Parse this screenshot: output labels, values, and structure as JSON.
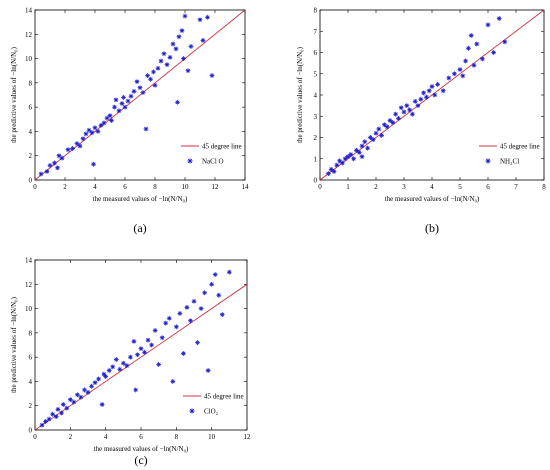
{
  "chart_data": [
    {
      "type": "scatter",
      "panel_label": "(a)",
      "xlabel": "the measured values of −ln(N/N₀)",
      "ylabel": "the predictive values of −ln(N/N₀)",
      "xlim": [
        0,
        14
      ],
      "ylim": [
        0,
        14
      ],
      "xticks": [
        "0",
        "2",
        "4",
        "6",
        "8",
        "10",
        "12",
        "14"
      ],
      "yticks": [
        "0",
        "2",
        "4",
        "6",
        "8",
        "10",
        "12",
        "14"
      ],
      "legend_position": "bottom-right",
      "reference_line": {
        "name": "45 degree line",
        "color": "#cc3344",
        "from": [
          0,
          0
        ],
        "to": [
          14,
          14
        ]
      },
      "series": [
        {
          "name": "NaCl O",
          "marker": "star",
          "color": "#1a1acc",
          "points": [
            [
              0.4,
              0.5
            ],
            [
              0.8,
              0.7
            ],
            [
              1.0,
              1.2
            ],
            [
              1.3,
              1.4
            ],
            [
              1.5,
              1.0
            ],
            [
              1.6,
              2.0
            ],
            [
              1.8,
              1.8
            ],
            [
              2.2,
              2.5
            ],
            [
              2.5,
              2.6
            ],
            [
              2.8,
              3.0
            ],
            [
              3.0,
              2.8
            ],
            [
              3.2,
              3.4
            ],
            [
              3.4,
              3.8
            ],
            [
              3.6,
              4.1
            ],
            [
              3.8,
              3.9
            ],
            [
              3.9,
              1.3
            ],
            [
              4.0,
              4.3
            ],
            [
              4.2,
              4.0
            ],
            [
              4.4,
              4.5
            ],
            [
              4.6,
              4.7
            ],
            [
              4.8,
              5.1
            ],
            [
              5.0,
              5.3
            ],
            [
              5.1,
              4.9
            ],
            [
              5.3,
              6.0
            ],
            [
              5.4,
              6.6
            ],
            [
              5.6,
              5.7
            ],
            [
              5.8,
              6.3
            ],
            [
              5.9,
              6.8
            ],
            [
              6.0,
              6.0
            ],
            [
              6.2,
              6.5
            ],
            [
              6.4,
              6.9
            ],
            [
              6.6,
              7.3
            ],
            [
              6.8,
              8.1
            ],
            [
              7.0,
              7.6
            ],
            [
              7.2,
              7.2
            ],
            [
              7.4,
              4.2
            ],
            [
              7.5,
              8.6
            ],
            [
              7.7,
              8.3
            ],
            [
              7.9,
              8.9
            ],
            [
              8.0,
              7.8
            ],
            [
              8.2,
              9.2
            ],
            [
              8.4,
              9.8
            ],
            [
              8.6,
              10.4
            ],
            [
              8.8,
              9.5
            ],
            [
              9.0,
              10.1
            ],
            [
              9.2,
              11.2
            ],
            [
              9.4,
              10.8
            ],
            [
              9.5,
              6.4
            ],
            [
              9.6,
              11.8
            ],
            [
              9.8,
              12.3
            ],
            [
              9.9,
              10.0
            ],
            [
              10.0,
              13.5
            ],
            [
              10.2,
              9.0
            ],
            [
              10.4,
              11.0
            ],
            [
              11.0,
              13.2
            ],
            [
              11.2,
              11.5
            ],
            [
              11.5,
              13.4
            ],
            [
              11.8,
              8.6
            ]
          ]
        }
      ]
    },
    {
      "type": "scatter",
      "panel_label": "(b)",
      "xlabel": "the measured values of −ln(N/N₀)",
      "ylabel": "the predictive values of −ln(N/N₀)",
      "xlim": [
        0,
        8
      ],
      "ylim": [
        0,
        8
      ],
      "xticks": [
        "0",
        "1",
        "2",
        "3",
        "4",
        "5",
        "6",
        "7",
        "8"
      ],
      "yticks": [
        "0",
        "1",
        "2",
        "3",
        "4",
        "5",
        "6",
        "7",
        "8"
      ],
      "legend_position": "bottom-right",
      "reference_line": {
        "name": "45 degree line",
        "color": "#cc3344",
        "from": [
          0,
          0
        ],
        "to": [
          8,
          8
        ]
      },
      "series": [
        {
          "name": "NH₂Cl",
          "marker": "star",
          "color": "#1a1acc",
          "points": [
            [
              0.3,
              0.3
            ],
            [
              0.4,
              0.5
            ],
            [
              0.5,
              0.4
            ],
            [
              0.6,
              0.7
            ],
            [
              0.7,
              0.9
            ],
            [
              0.8,
              0.8
            ],
            [
              0.9,
              1.0
            ],
            [
              1.0,
              1.1
            ],
            [
              1.1,
              1.2
            ],
            [
              1.2,
              1.0
            ],
            [
              1.3,
              1.4
            ],
            [
              1.4,
              1.3
            ],
            [
              1.5,
              1.6
            ],
            [
              1.5,
              1.1
            ],
            [
              1.6,
              1.8
            ],
            [
              1.7,
              1.5
            ],
            [
              1.8,
              2.0
            ],
            [
              1.9,
              1.9
            ],
            [
              2.0,
              2.2
            ],
            [
              2.1,
              2.4
            ],
            [
              2.2,
              2.1
            ],
            [
              2.3,
              2.6
            ],
            [
              2.4,
              2.5
            ],
            [
              2.5,
              2.8
            ],
            [
              2.6,
              2.7
            ],
            [
              2.7,
              3.1
            ],
            [
              2.8,
              2.9
            ],
            [
              2.9,
              3.4
            ],
            [
              3.0,
              3.2
            ],
            [
              3.1,
              3.5
            ],
            [
              3.2,
              3.3
            ],
            [
              3.3,
              3.1
            ],
            [
              3.4,
              3.7
            ],
            [
              3.5,
              3.5
            ],
            [
              3.6,
              3.8
            ],
            [
              3.7,
              4.1
            ],
            [
              3.8,
              3.9
            ],
            [
              3.9,
              4.2
            ],
            [
              4.0,
              4.4
            ],
            [
              4.1,
              4.0
            ],
            [
              4.2,
              4.5
            ],
            [
              4.4,
              4.2
            ],
            [
              4.6,
              4.8
            ],
            [
              4.8,
              5.0
            ],
            [
              5.0,
              5.2
            ],
            [
              5.1,
              4.9
            ],
            [
              5.2,
              5.6
            ],
            [
              5.3,
              6.2
            ],
            [
              5.4,
              6.8
            ],
            [
              5.5,
              5.4
            ],
            [
              5.6,
              6.4
            ],
            [
              5.8,
              5.7
            ],
            [
              6.0,
              7.3
            ],
            [
              6.2,
              6.0
            ],
            [
              6.4,
              7.6
            ],
            [
              6.6,
              6.5
            ]
          ]
        }
      ]
    },
    {
      "type": "scatter",
      "panel_label": "(c)",
      "xlabel": "the measured values of −ln(N/N₀)",
      "ylabel": "the predictive values of −ln(N/N₀)",
      "xlim": [
        0,
        12
      ],
      "ylim": [
        0,
        14
      ],
      "xticks": [
        "0",
        "2",
        "4",
        "6",
        "8",
        "10",
        "12"
      ],
      "yticks": [
        "0",
        "2",
        "4",
        "6",
        "8",
        "10",
        "12",
        "14"
      ],
      "legend_position": "bottom-right",
      "reference_line": {
        "name": "45 degree line",
        "color": "#cc3344",
        "from": [
          0,
          0
        ],
        "to": [
          12,
          12
        ]
      },
      "series": [
        {
          "name": "ClO₂",
          "marker": "star",
          "color": "#1a1acc",
          "points": [
            [
              0.4,
              0.4
            ],
            [
              0.6,
              0.7
            ],
            [
              0.8,
              0.9
            ],
            [
              1.0,
              1.3
            ],
            [
              1.2,
              1.1
            ],
            [
              1.3,
              1.7
            ],
            [
              1.5,
              1.4
            ],
            [
              1.6,
              2.1
            ],
            [
              1.8,
              1.8
            ],
            [
              2.0,
              2.5
            ],
            [
              2.2,
              2.3
            ],
            [
              2.4,
              2.9
            ],
            [
              2.6,
              2.7
            ],
            [
              2.8,
              3.3
            ],
            [
              3.0,
              3.1
            ],
            [
              3.2,
              3.6
            ],
            [
              3.4,
              3.9
            ],
            [
              3.6,
              4.2
            ],
            [
              3.8,
              2.1
            ],
            [
              3.9,
              4.6
            ],
            [
              4.0,
              4.4
            ],
            [
              4.2,
              4.9
            ],
            [
              4.4,
              5.2
            ],
            [
              4.6,
              5.8
            ],
            [
              4.8,
              5.0
            ],
            [
              5.0,
              5.5
            ],
            [
              5.2,
              5.3
            ],
            [
              5.4,
              6.0
            ],
            [
              5.6,
              7.3
            ],
            [
              5.7,
              3.3
            ],
            [
              5.8,
              6.2
            ],
            [
              6.0,
              6.7
            ],
            [
              6.2,
              6.4
            ],
            [
              6.4,
              7.4
            ],
            [
              6.6,
              7.0
            ],
            [
              6.8,
              8.2
            ],
            [
              7.0,
              5.4
            ],
            [
              7.2,
              7.6
            ],
            [
              7.4,
              8.8
            ],
            [
              7.6,
              9.2
            ],
            [
              7.8,
              4.0
            ],
            [
              8.0,
              8.5
            ],
            [
              8.2,
              9.6
            ],
            [
              8.4,
              6.3
            ],
            [
              8.6,
              10.1
            ],
            [
              8.8,
              9.0
            ],
            [
              9.0,
              10.6
            ],
            [
              9.2,
              7.2
            ],
            [
              9.4,
              10.0
            ],
            [
              9.6,
              11.3
            ],
            [
              9.8,
              4.9
            ],
            [
              10.0,
              12.0
            ],
            [
              10.2,
              12.8
            ],
            [
              10.4,
              11.1
            ],
            [
              10.6,
              9.5
            ],
            [
              11.0,
              13.0
            ]
          ]
        }
      ]
    }
  ]
}
